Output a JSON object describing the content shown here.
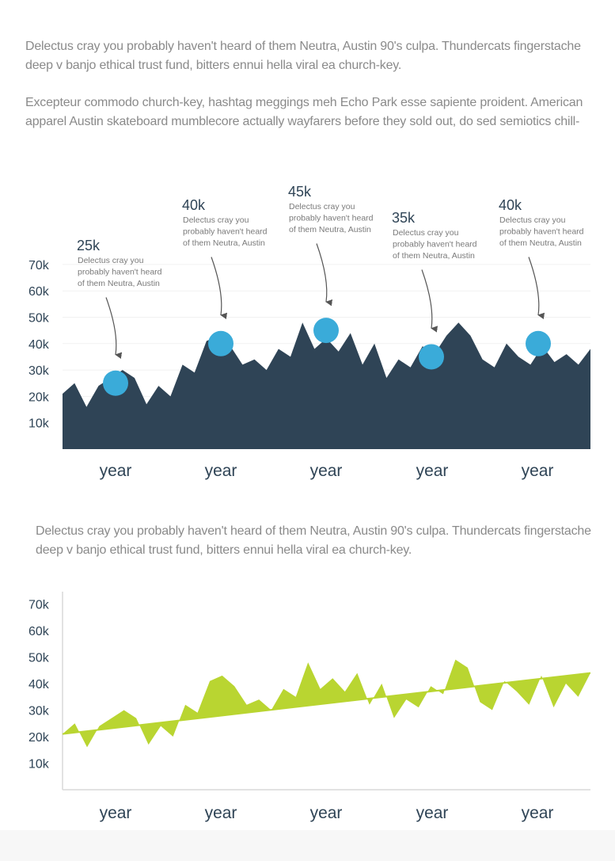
{
  "intro": {
    "paragraph1": "Delectus cray you probably haven't heard of them Neutra, Austin 90's culpa. Thundercats fingerstache deep v banjo ethical trust fund, bitters ennui hella viral ea church-key.",
    "paragraph2": "Excepteur commodo church-key, hashtag meggings meh Echo Park esse sapiente proident. American apparel Austin skateboard mumblecore actually wayfarers before they sold out, do sed semiotics chill-"
  },
  "section2": {
    "paragraph": "Delectus cray you probably haven't heard of them Neutra, Austin 90's culpa. Thundercats fingerstache deep v banjo ethical trust fund, bitters ennui hella viral ea church-key."
  },
  "colors": {
    "area_dark": "#2f4456",
    "marker": "#3aabd9",
    "area_green": "#b9d531",
    "axis_text": "#2f4456",
    "annotation_text": "#7a7a7a"
  },
  "chart_data": [
    {
      "type": "area",
      "title": "",
      "y_ticks": [
        "70k",
        "60k",
        "50k",
        "40k",
        "30k",
        "20k",
        "10k"
      ],
      "ylim": [
        0,
        70000
      ],
      "x_labels": [
        "year",
        "year",
        "year",
        "year",
        "year"
      ],
      "series": [
        {
          "values": [
            21,
            25,
            16,
            24,
            27,
            30,
            27,
            17,
            24,
            20,
            32,
            29,
            41,
            43,
            39,
            32,
            34,
            30,
            38,
            35,
            48,
            38,
            42,
            37,
            44,
            32,
            40,
            27,
            34,
            31,
            39,
            36,
            43,
            48,
            43,
            34,
            31,
            40,
            35,
            32,
            39,
            33,
            36,
            32,
            38
          ]
        }
      ],
      "annotations": [
        {
          "value_label": "25k",
          "text_lines": [
            "Delectus cray you",
            "probably haven't heard",
            "of them Neutra, Austin"
          ],
          "marker_value": 25
        },
        {
          "value_label": "40k",
          "text_lines": [
            "Delectus cray you",
            "probably haven't heard",
            "of them Neutra, Austin"
          ],
          "marker_value": 40
        },
        {
          "value_label": "45k",
          "text_lines": [
            "Delectus cray you",
            "probably haven't heard",
            "of them Neutra, Austin"
          ],
          "marker_value": 45
        },
        {
          "value_label": "35k",
          "text_lines": [
            "Delectus cray you",
            "probably haven't heard",
            "of them Neutra, Austin"
          ],
          "marker_value": 35
        },
        {
          "value_label": "40k",
          "text_lines": [
            "Delectus cray you",
            "probably haven't heard",
            "of them Neutra, Austin"
          ],
          "marker_value": 40
        }
      ]
    },
    {
      "type": "area",
      "title": "",
      "y_ticks": [
        "70k",
        "60k",
        "50k",
        "40k",
        "30k",
        "20k",
        "10k"
      ],
      "ylim": [
        0,
        70000
      ],
      "x_labels": [
        "year",
        "year",
        "year",
        "year",
        "year"
      ],
      "trend": {
        "start": 21,
        "end": 44
      },
      "series": [
        {
          "values": [
            21,
            25,
            16,
            24,
            27,
            30,
            27,
            17,
            24,
            20,
            32,
            29,
            41,
            43,
            39,
            32,
            34,
            30,
            38,
            35,
            48,
            38,
            42,
            37,
            44,
            32,
            40,
            27,
            34,
            31,
            39,
            36,
            49,
            46,
            33,
            30,
            41,
            37,
            32,
            43,
            31,
            40,
            35,
            44
          ]
        }
      ]
    }
  ]
}
